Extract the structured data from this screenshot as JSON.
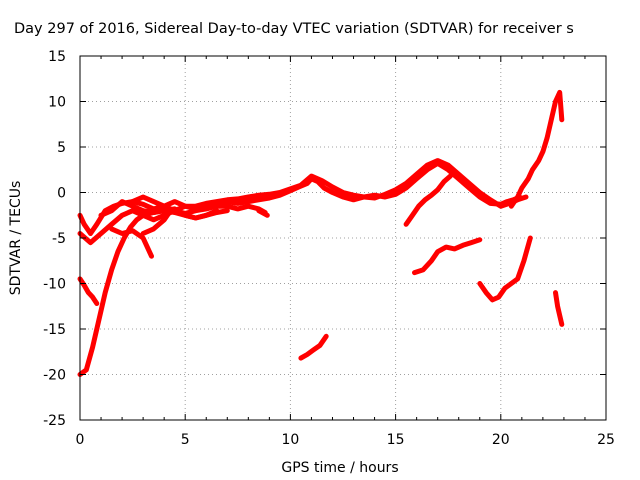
{
  "chart_data": {
    "type": "line",
    "title": "Day 297 of 2016, Sidereal Day-to-day VTEC variation (SDTVAR) for receiver s",
    "xlabel": "GPS time / hours",
    "ylabel": "SDTVAR / TECUs",
    "xlim": [
      0,
      25
    ],
    "ylim": [
      -25,
      15
    ],
    "x_ticks": [
      "0",
      "5",
      "10",
      "15",
      "20",
      "25"
    ],
    "y_ticks": [
      "-25",
      "-20",
      "-15",
      "-10",
      "-5",
      "0",
      "5",
      "10",
      "15"
    ],
    "x_tick_values": [
      0,
      5,
      10,
      15,
      20,
      25
    ],
    "y_tick_values": [
      -25,
      -20,
      -15,
      -10,
      -5,
      0,
      5,
      10,
      15
    ],
    "grid": true,
    "marker": "plus",
    "color": "#ff0000",
    "series": [
      {
        "x": [
          0.0,
          0.2,
          0.5,
          0.8,
          1.2,
          1.6,
          2.0,
          2.5,
          3.0,
          3.5,
          4.0,
          4.5,
          5.0,
          5.5,
          6.0,
          6.5,
          7.0,
          7.5,
          8.0,
          8.5,
          9.0,
          9.5,
          10.0,
          10.4,
          10.8,
          11.0,
          11.3,
          11.6,
          12.0,
          12.5,
          13.0,
          13.5,
          14.0,
          14.5,
          15.0,
          15.5,
          16.0,
          16.5,
          17.0,
          17.5,
          18.0,
          18.5,
          19.0,
          19.5,
          20.0,
          20.3,
          20.6,
          20.9
        ],
        "y": [
          -2.5,
          -3.5,
          -4.5,
          -3.5,
          -2.0,
          -1.5,
          -1.2,
          -1.0,
          -1.3,
          -1.8,
          -1.5,
          -1.0,
          -1.5,
          -1.8,
          -1.5,
          -1.2,
          -1.0,
          -1.2,
          -1.0,
          -0.8,
          -0.6,
          -0.3,
          0.2,
          0.6,
          1.0,
          1.5,
          1.2,
          0.5,
          0.0,
          -0.5,
          -0.8,
          -0.5,
          -0.3,
          -0.5,
          -0.2,
          0.5,
          1.5,
          2.5,
          3.2,
          2.5,
          1.5,
          0.5,
          -0.5,
          -1.2,
          -1.3,
          -1.0,
          -0.8,
          -0.5
        ]
      },
      {
        "x": [
          0.0,
          0.5,
          1.0,
          1.5,
          2.0,
          2.5,
          3.0,
          3.5,
          4.0,
          4.5,
          5.0,
          5.5,
          6.0,
          6.5,
          7.0,
          7.5,
          8.0,
          8.5,
          9.0,
          9.5,
          10.0,
          10.5,
          11.0,
          11.5,
          12.0,
          12.5,
          13.0,
          13.5,
          14.0,
          14.5,
          15.0,
          15.5,
          16.0,
          16.5,
          17.0,
          17.5,
          18.0,
          18.5,
          19.0,
          19.5,
          20.0,
          20.4,
          20.8,
          21.2
        ],
        "y": [
          -4.5,
          -5.5,
          -4.5,
          -3.5,
          -2.5,
          -2.0,
          -2.5,
          -3.0,
          -2.5,
          -2.0,
          -1.5,
          -1.5,
          -1.2,
          -1.0,
          -0.8,
          -0.7,
          -0.5,
          -0.3,
          -0.2,
          0.0,
          0.4,
          0.8,
          1.8,
          1.3,
          0.6,
          0.0,
          -0.3,
          -0.5,
          -0.6,
          -0.2,
          0.3,
          1.0,
          2.0,
          3.0,
          3.5,
          3.0,
          2.0,
          1.0,
          0.0,
          -0.8,
          -1.5,
          -1.2,
          -0.8,
          -0.5
        ]
      },
      {
        "x": [
          1.0,
          1.5,
          2.0,
          2.5,
          3.0,
          3.5,
          4.0,
          4.5,
          5.0,
          5.5,
          6.0,
          6.5
        ],
        "y": [
          -2.5,
          -2.0,
          -1.0,
          -1.5,
          -2.0,
          -2.2,
          -2.0,
          -1.8,
          -2.5,
          -2.8,
          -2.5,
          -2.0
        ]
      },
      {
        "x": [
          2.5,
          3.0,
          3.5,
          4.0,
          4.5,
          5.0,
          5.5,
          6.0,
          6.5,
          7.0,
          7.5,
          8.0,
          8.5,
          8.8
        ],
        "y": [
          -1.0,
          -0.5,
          -1.0,
          -1.5,
          -2.0,
          -2.3,
          -2.0,
          -1.8,
          -1.5,
          -1.5,
          -1.8,
          -1.5,
          -1.8,
          -2.2
        ]
      },
      {
        "x": [
          1.5,
          2.0,
          2.5,
          3.0,
          3.4
        ],
        "y": [
          -4.0,
          -4.5,
          -4.2,
          -5.0,
          -7.0
        ]
      },
      {
        "x": [
          0.0,
          0.3,
          0.6,
          0.9,
          1.2,
          1.5,
          1.8,
          2.1,
          2.4,
          2.7,
          3.0,
          3.5,
          4.0,
          4.5,
          5.0,
          5.5,
          6.0,
          6.5,
          7.0
        ],
        "y": [
          -20.0,
          -19.5,
          -17.0,
          -14.0,
          -11.0,
          -8.5,
          -6.5,
          -5.0,
          -3.8,
          -3.0,
          -2.5,
          -2.2,
          -2.0,
          -2.2,
          -2.5,
          -2.8,
          -2.5,
          -2.2,
          -2.0
        ]
      },
      {
        "x": [
          0.0,
          0.2,
          0.4,
          0.6,
          0.8
        ],
        "y": [
          -9.5,
          -10.2,
          -11.0,
          -11.5,
          -12.2
        ]
      },
      {
        "x": [
          3.0,
          3.5,
          4.0,
          4.3
        ],
        "y": [
          -4.5,
          -4.0,
          -3.0,
          -2.0
        ]
      },
      {
        "x": [
          8.5,
          8.9
        ],
        "y": [
          -2.0,
          -2.5
        ]
      },
      {
        "x": [
          10.5,
          10.8,
          11.1,
          11.4,
          11.7
        ],
        "y": [
          -18.2,
          -17.8,
          -17.3,
          -16.8,
          -15.8
        ]
      },
      {
        "x": [
          15.5,
          15.8,
          16.1,
          16.4,
          16.7,
          17.0,
          17.3,
          17.6
        ],
        "y": [
          -3.5,
          -2.5,
          -1.5,
          -0.8,
          -0.3,
          0.3,
          1.2,
          1.8
        ]
      },
      {
        "x": [
          15.9,
          16.3,
          16.7,
          17.0,
          17.4,
          17.8,
          18.2,
          18.6,
          19.0
        ],
        "y": [
          -8.8,
          -8.5,
          -7.5,
          -6.5,
          -6.0,
          -6.2,
          -5.8,
          -5.5,
          -5.2
        ]
      },
      {
        "x": [
          19.0,
          19.3,
          19.6,
          19.9,
          20.2,
          20.5,
          20.8,
          21.1,
          21.4
        ],
        "y": [
          -10.0,
          -11.0,
          -11.8,
          -11.5,
          -10.5,
          -10.0,
          -9.5,
          -7.5,
          -5.0
        ]
      },
      {
        "x": [
          20.5,
          20.8,
          21.0,
          21.3,
          21.5,
          21.8,
          22.0,
          22.2,
          22.4,
          22.6,
          22.8,
          22.9
        ],
        "y": [
          -1.5,
          -0.5,
          0.5,
          1.5,
          2.5,
          3.5,
          4.5,
          6.0,
          8.0,
          10.0,
          11.0,
          8.0
        ]
      },
      {
        "x": [
          22.6,
          22.7,
          22.8,
          22.9
        ],
        "y": [
          -11.0,
          -12.5,
          -13.5,
          -14.5
        ]
      }
    ]
  }
}
